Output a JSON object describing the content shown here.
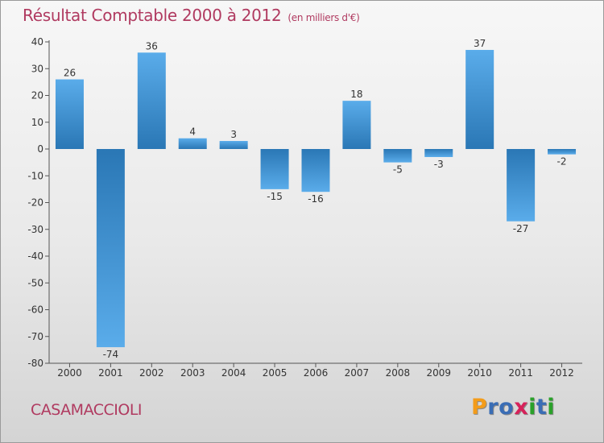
{
  "title": "Résultat Comptable 2000 à 2012",
  "subtitle": "(en milliers d'€)",
  "commune": "CASAMACCIOLI",
  "logo": {
    "letters": [
      "P",
      "r",
      "o",
      "x",
      "i",
      "t",
      "i"
    ]
  },
  "colors": {
    "title": "#b03a60",
    "bar_light": "#5aacea",
    "bar_dark": "#2a77b5",
    "logo": [
      "#f39c1a",
      "#3a6db5",
      "#3a6db5",
      "#d6225a",
      "#2aa12a",
      "#3a6db5",
      "#2aa12a"
    ]
  },
  "chart_data": {
    "type": "bar",
    "title": "Résultat Comptable 2000 à 2012",
    "subtitle": "(en milliers d'€)",
    "xlabel": "",
    "ylabel": "",
    "categories": [
      "2000",
      "2001",
      "2002",
      "2003",
      "2004",
      "2005",
      "2006",
      "2007",
      "2008",
      "2009",
      "2010",
      "2011",
      "2012"
    ],
    "values": [
      26,
      -74,
      36,
      4,
      3,
      -15,
      -16,
      18,
      -5,
      -3,
      37,
      -27,
      -2
    ],
    "ylim": [
      -80,
      40
    ],
    "yticks": [
      40,
      30,
      20,
      10,
      0,
      -10,
      -20,
      -30,
      -40,
      -50,
      -60,
      -70,
      -80
    ],
    "grid": false,
    "legend": "none"
  }
}
